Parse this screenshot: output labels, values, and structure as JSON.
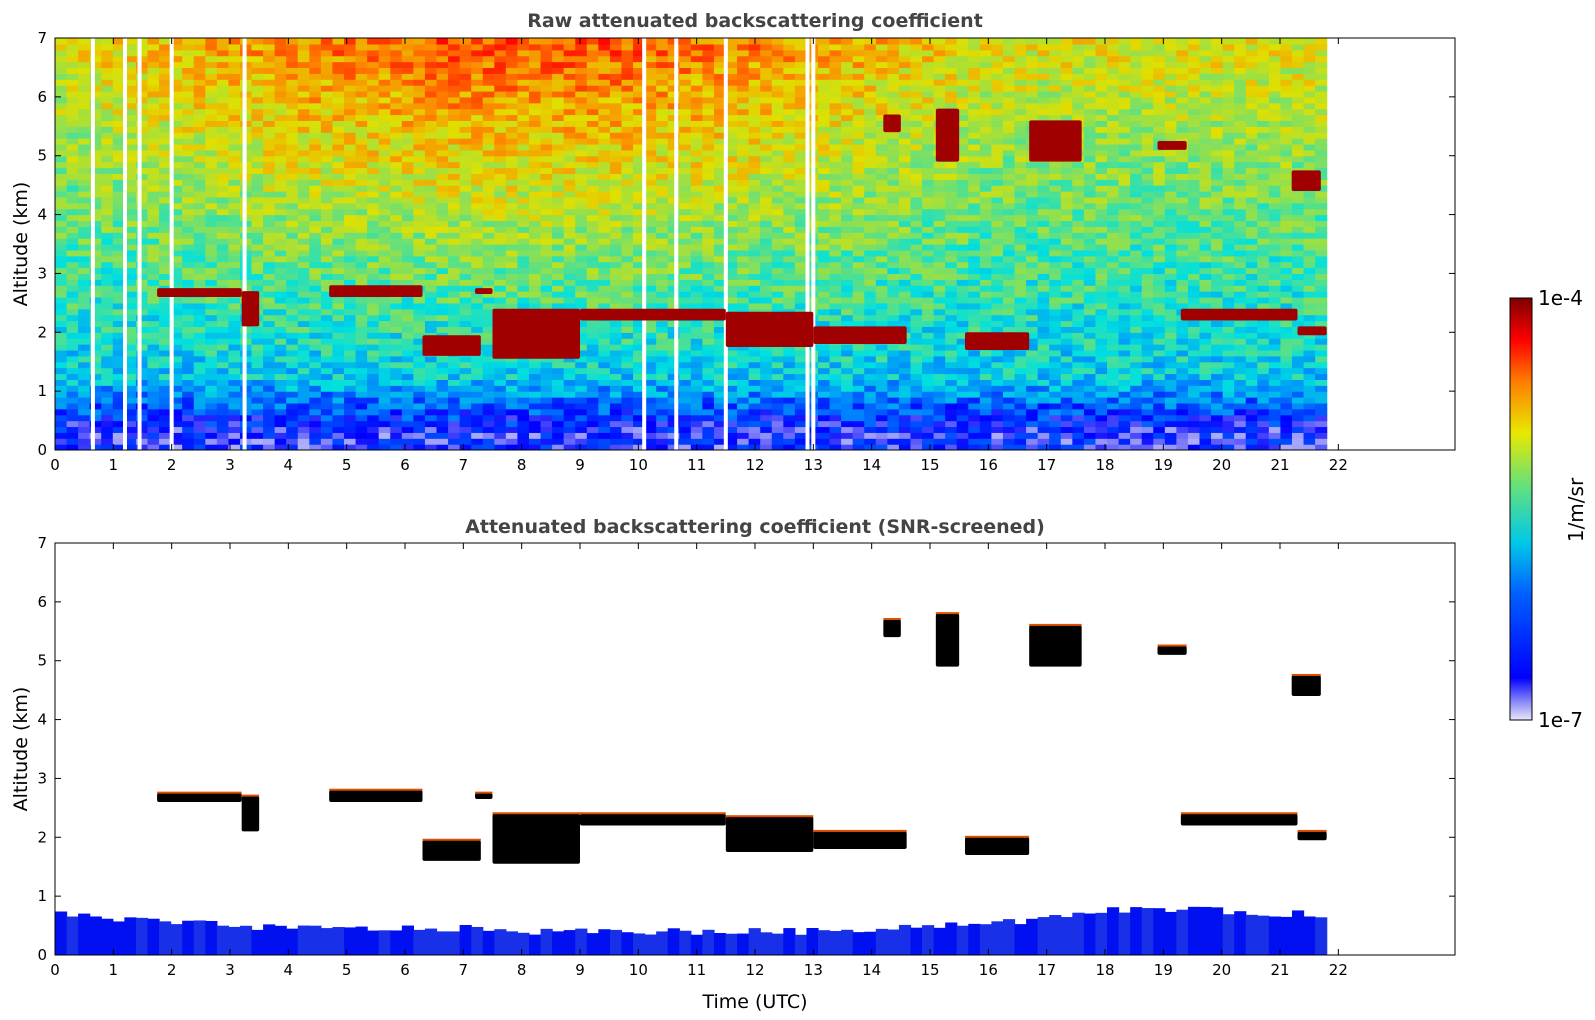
{
  "chart_data": [
    {
      "type": "heatmap",
      "title": "Raw attenuated backscattering coefficient",
      "xlabel": "",
      "ylabel": "Altitude (km)",
      "xlim": [
        0,
        24
      ],
      "ylim": [
        0,
        7
      ],
      "x_ticks": [
        "0",
        "1",
        "2",
        "3",
        "4",
        "5",
        "6",
        "7",
        "8",
        "9",
        "10",
        "11",
        "12",
        "13",
        "14",
        "15",
        "16",
        "17",
        "18",
        "19",
        "20",
        "21",
        "22"
      ],
      "y_ticks": [
        "0",
        "1",
        "2",
        "3",
        "4",
        "5",
        "6",
        "7"
      ],
      "data_end_time": 21.8,
      "data_gaps": [
        0.65,
        1.2,
        1.45,
        2.0,
        3.25,
        10.1,
        10.65,
        11.5,
        12.9,
        13.0
      ],
      "cloud_layers": [
        {
          "t": [
            1.75,
            3.2
          ],
          "z": [
            2.6,
            2.75
          ]
        },
        {
          "t": [
            3.2,
            3.5
          ],
          "z": [
            2.1,
            2.7
          ]
        },
        {
          "t": [
            4.7,
            6.3
          ],
          "z": [
            2.6,
            2.8
          ]
        },
        {
          "t": [
            6.3,
            7.3
          ],
          "z": [
            1.6,
            1.95
          ]
        },
        {
          "t": [
            7.2,
            7.5
          ],
          "z": [
            2.65,
            2.75
          ]
        },
        {
          "t": [
            7.5,
            9.0
          ],
          "z": [
            1.55,
            2.4
          ]
        },
        {
          "t": [
            9.0,
            11.5
          ],
          "z": [
            2.2,
            2.4
          ]
        },
        {
          "t": [
            11.5,
            13.0
          ],
          "z": [
            1.75,
            2.35
          ]
        },
        {
          "t": [
            13.0,
            14.6
          ],
          "z": [
            1.8,
            2.1
          ]
        },
        {
          "t": [
            15.6,
            16.7
          ],
          "z": [
            1.7,
            2.0
          ]
        },
        {
          "t": [
            19.3,
            21.3
          ],
          "z": [
            2.2,
            2.4
          ]
        },
        {
          "t": [
            21.3,
            21.8
          ],
          "z": [
            1.95,
            2.1
          ]
        },
        {
          "t": [
            14.2,
            14.5
          ],
          "z": [
            5.4,
            5.7
          ]
        },
        {
          "t": [
            15.1,
            15.5
          ],
          "z": [
            4.9,
            5.8
          ]
        },
        {
          "t": [
            16.7,
            17.6
          ],
          "z": [
            4.9,
            5.6
          ]
        },
        {
          "t": [
            18.9,
            19.4
          ],
          "z": [
            5.1,
            5.25
          ]
        },
        {
          "t": [
            21.2,
            21.7
          ],
          "z": [
            4.4,
            4.75
          ]
        }
      ]
    },
    {
      "type": "heatmap",
      "title": "Attenuated backscattering coefficient (SNR-screened)",
      "xlabel": "Time (UTC)",
      "ylabel": "Altitude (km)",
      "xlim": [
        0,
        24
      ],
      "ylim": [
        0,
        7
      ],
      "x_ticks": [
        "0",
        "1",
        "2",
        "3",
        "4",
        "5",
        "6",
        "7",
        "8",
        "9",
        "10",
        "11",
        "12",
        "13",
        "14",
        "15",
        "16",
        "17",
        "18",
        "19",
        "20",
        "21",
        "22"
      ],
      "y_ticks": [
        "0",
        "1",
        "2",
        "3",
        "4",
        "5",
        "6",
        "7"
      ],
      "data_end_time": 21.8,
      "boundary_layer_top_km": [
        0.7,
        0.6,
        0.55,
        0.5,
        0.45,
        0.45,
        0.45,
        0.45,
        0.4,
        0.4,
        0.4,
        0.4,
        0.4,
        0.4,
        0.45,
        0.5,
        0.55,
        0.6,
        0.75,
        0.8,
        0.75,
        0.7,
        0.7
      ],
      "cloud_layers": [
        {
          "t": [
            1.75,
            3.2
          ],
          "z": [
            2.6,
            2.75
          ]
        },
        {
          "t": [
            3.2,
            3.5
          ],
          "z": [
            2.1,
            2.7
          ]
        },
        {
          "t": [
            4.7,
            6.3
          ],
          "z": [
            2.6,
            2.8
          ]
        },
        {
          "t": [
            6.3,
            7.3
          ],
          "z": [
            1.6,
            1.95
          ]
        },
        {
          "t": [
            7.2,
            7.5
          ],
          "z": [
            2.65,
            2.75
          ]
        },
        {
          "t": [
            7.5,
            9.0
          ],
          "z": [
            1.55,
            2.4
          ]
        },
        {
          "t": [
            9.0,
            11.5
          ],
          "z": [
            2.2,
            2.4
          ]
        },
        {
          "t": [
            11.5,
            13.0
          ],
          "z": [
            1.75,
            2.35
          ]
        },
        {
          "t": [
            13.0,
            14.6
          ],
          "z": [
            1.8,
            2.1
          ]
        },
        {
          "t": [
            15.6,
            16.7
          ],
          "z": [
            1.7,
            2.0
          ]
        },
        {
          "t": [
            19.3,
            21.3
          ],
          "z": [
            2.2,
            2.4
          ]
        },
        {
          "t": [
            21.3,
            21.8
          ],
          "z": [
            1.95,
            2.1
          ]
        },
        {
          "t": [
            14.2,
            14.5
          ],
          "z": [
            5.4,
            5.7
          ]
        },
        {
          "t": [
            15.1,
            15.5
          ],
          "z": [
            4.9,
            5.8
          ]
        },
        {
          "t": [
            16.7,
            17.6
          ],
          "z": [
            4.9,
            5.6
          ]
        },
        {
          "t": [
            18.9,
            19.4
          ],
          "z": [
            5.1,
            5.25
          ]
        },
        {
          "t": [
            21.2,
            21.7
          ],
          "z": [
            4.4,
            4.75
          ]
        }
      ]
    }
  ],
  "colorbar": {
    "label": "1/m/sr",
    "max_label": "1e-4",
    "min_label": "1e-7",
    "scale": "log",
    "range": [
      1e-07,
      0.0001
    ],
    "colormap": [
      "#e8e8f8",
      "#0000ff",
      "#0080ff",
      "#00e0e0",
      "#80e060",
      "#e0e000",
      "#ff8000",
      "#ff0000",
      "#800000"
    ]
  }
}
